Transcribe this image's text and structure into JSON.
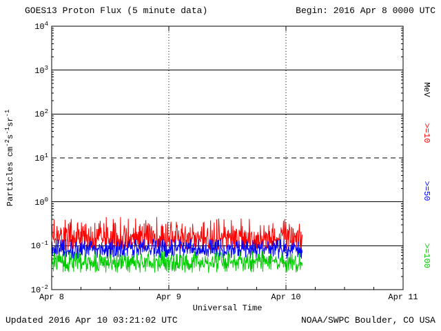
{
  "chart_data": {
    "type": "line",
    "title": "GOES13 Proton Flux (5 minute data)",
    "begin_label": "Begin: 2016 Apr 8 0000 UTC",
    "xlabel": "Universal Time",
    "units_label": "MeV",
    "ylabel_segments": [
      {
        "text": "Particles cm"
      },
      {
        "sup": "-2"
      },
      {
        "text": "s"
      },
      {
        "sup": "-1"
      },
      {
        "text": "sr"
      },
      {
        "sup": "-1"
      }
    ],
    "x_ticks": [
      "Apr 8",
      "Apr 9",
      "Apr 10",
      "Apr 11"
    ],
    "xlim_days": [
      0,
      3
    ],
    "y_exponents": [
      4,
      3,
      2,
      1,
      0,
      -1,
      -2
    ],
    "ylim_exp": [
      -2,
      4
    ],
    "solid_gridline_exps": [
      3,
      2,
      0,
      -1
    ],
    "dashed_gridline_exp": 1,
    "vertical_gridline_days": [
      1,
      2
    ],
    "data_end_day": 2.139,
    "sample_interval_minutes": 5,
    "series": [
      {
        "label": ">=10",
        "name": ">=10 MeV",
        "color": "#ff0000",
        "median_flux": 0.15,
        "min_flux": 0.08,
        "max_flux": 0.45
      },
      {
        "label": ">=50",
        "name": ">=50 MeV",
        "color": "#0000ff",
        "median_flux": 0.085,
        "min_flux": 0.05,
        "max_flux": 0.14
      },
      {
        "label": ">=100",
        "name": ">=100 MeV",
        "color": "#00cc00",
        "median_flux": 0.042,
        "min_flux": 0.024,
        "max_flux": 0.075
      }
    ]
  },
  "footer": {
    "updated": "Updated 2016 Apr 10 03:21:02 UTC",
    "credit": "NOAA/SWPC Boulder, CO USA"
  }
}
